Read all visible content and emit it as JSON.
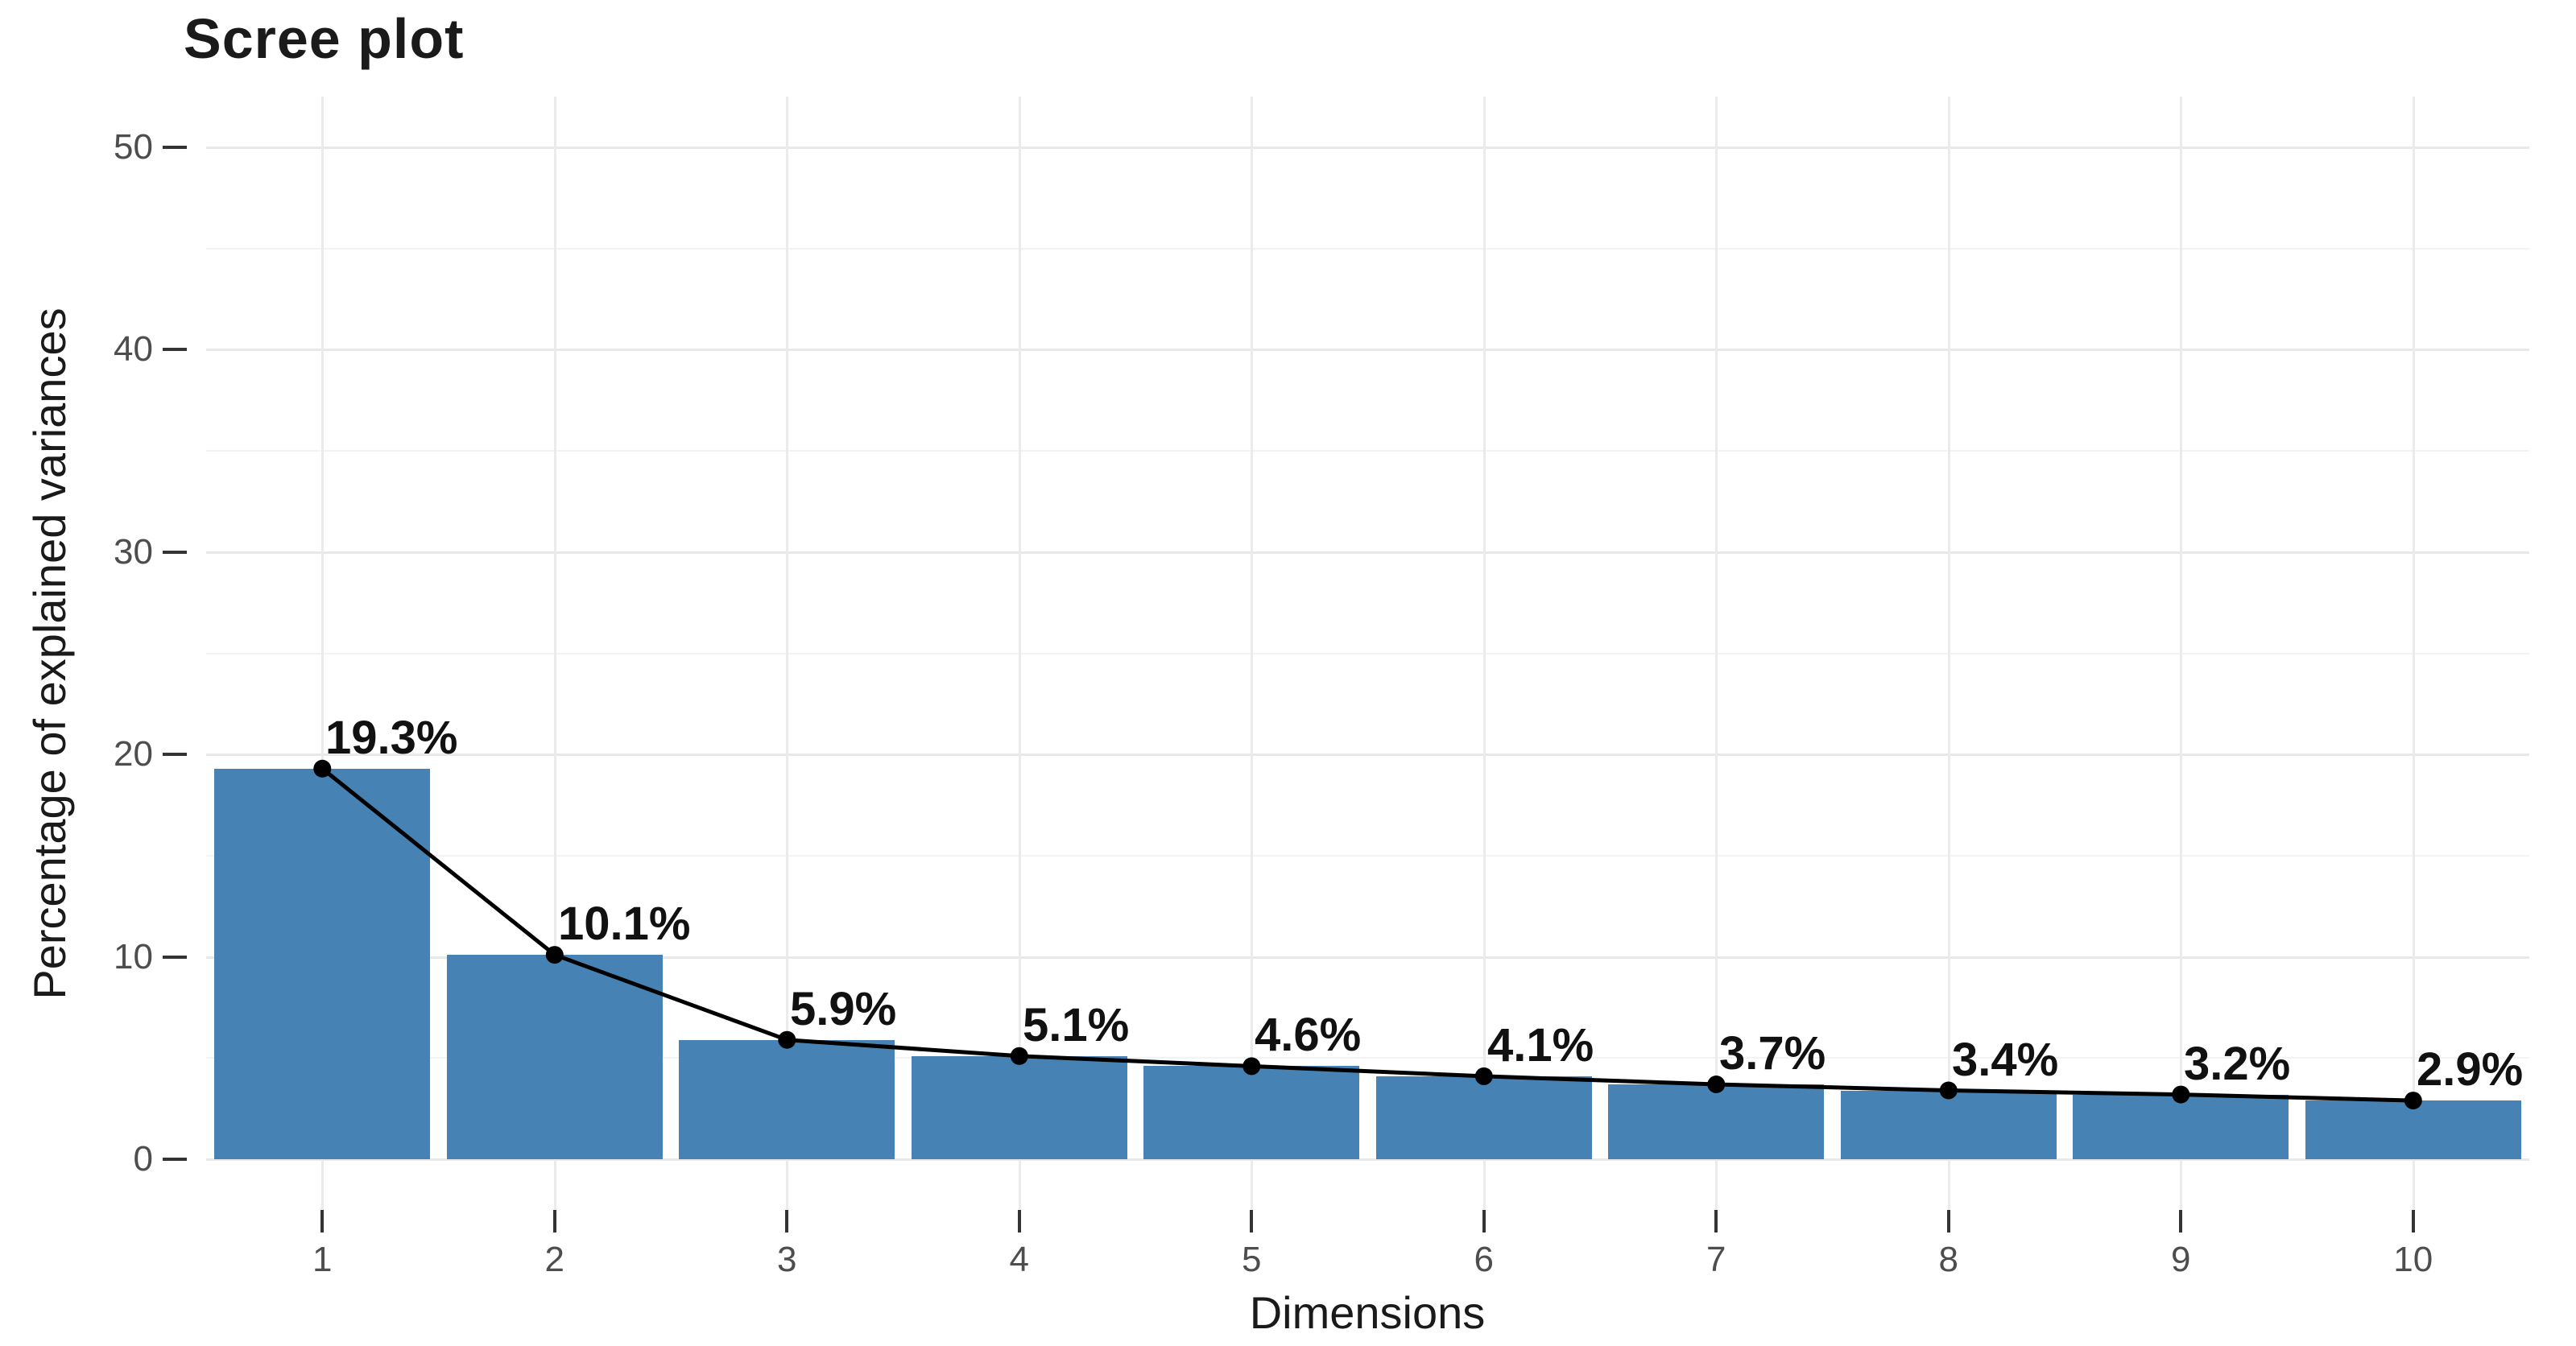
{
  "figure": {
    "background": "#ffffff"
  },
  "chart_data": {
    "type": "bar",
    "overlay": "line",
    "title": "Scree plot",
    "xlabel": "Dimensions",
    "ylabel": "Percentage of explained variances",
    "categories": [
      "1",
      "2",
      "3",
      "4",
      "5",
      "6",
      "7",
      "8",
      "9",
      "10"
    ],
    "values": [
      19.3,
      10.1,
      5.9,
      5.1,
      4.6,
      4.1,
      3.7,
      3.4,
      3.2,
      2.9
    ],
    "point_labels": [
      "19.3%",
      "10.1%",
      "5.9%",
      "5.1%",
      "4.6%",
      "4.1%",
      "3.7%",
      "3.4%",
      "3.2%",
      "2.9%"
    ],
    "yticks": [
      0,
      10,
      20,
      30,
      40,
      50
    ],
    "ytick_minor": [
      5,
      15,
      25,
      35,
      45
    ],
    "ylim": [
      0,
      50
    ],
    "grid": true,
    "legend": "none",
    "colors": {
      "bar_fill": "#4682b4",
      "line": "#000000",
      "point": "#000000",
      "label_text": "#111111",
      "tick_text": "#4d4d4d",
      "axis_title_text": "#1a1a1a",
      "title_text": "#1a1a1a",
      "grid_major": "#e8e8e8",
      "grid_minor": "#f3f3f3",
      "tick_mark": "#333333"
    }
  }
}
